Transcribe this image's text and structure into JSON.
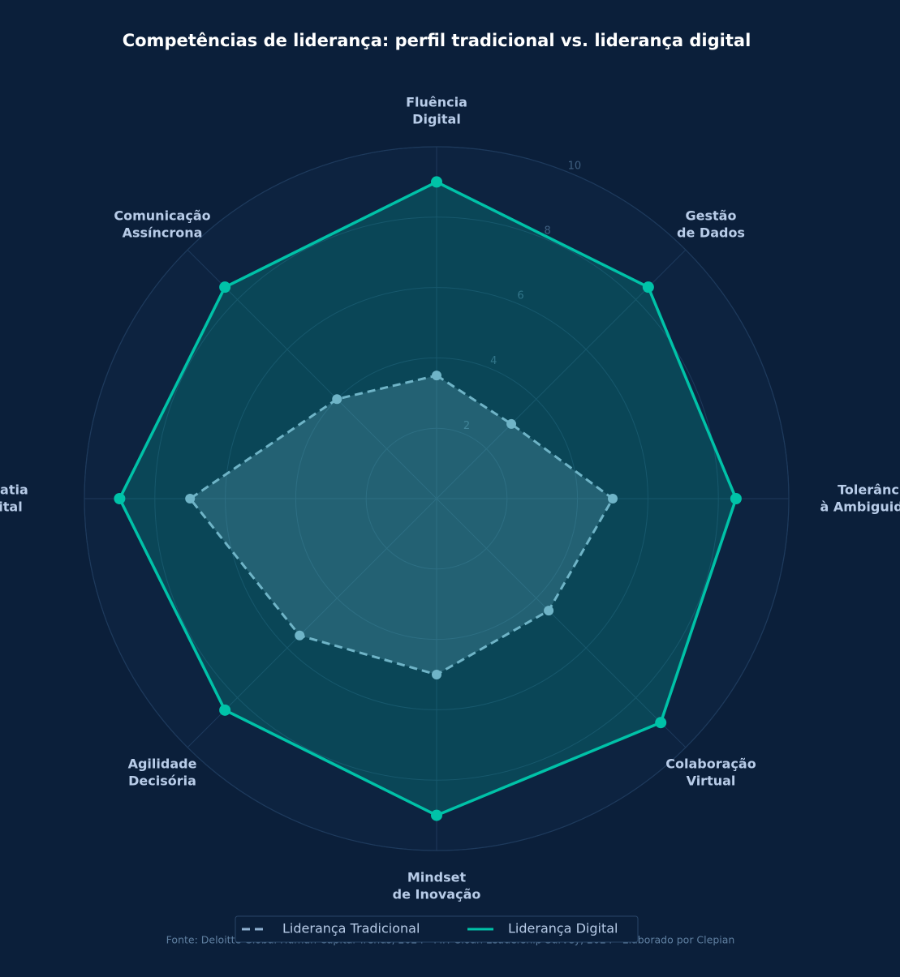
{
  "chart_data": {
    "type": "radar",
    "title": "Competências de liderança: perfil tradicional vs. liderança digital",
    "categories": [
      "Fluência\nDigital",
      "Gestão\nde Dados",
      "Tolerância\nà Ambiguidade",
      "Colaboração\nVirtual",
      "Mindset\nde Inovação",
      "Agilidade\nDecisória",
      "Empatia\nDigital",
      "Comunicação\nAssíncrona"
    ],
    "series": [
      {
        "name": "Liderança Tradicional",
        "color": "#8fb0d0",
        "values": [
          3.5,
          3,
          5,
          4.5,
          5,
          5.5,
          7,
          4
        ]
      },
      {
        "name": "Liderança Digital",
        "color": "#00c2a8",
        "values": [
          9,
          8.5,
          8.5,
          9,
          9,
          8.5,
          9,
          8.5
        ]
      }
    ],
    "ylim": [
      0,
      10
    ],
    "yticks": [
      2,
      4,
      6,
      8,
      10
    ],
    "footnote": "Fonte: Deloitte Global Human Capital Trends, 2024 · MIT Sloan Leadership Survey, 2024 · Elaborado por Clepian"
  }
}
